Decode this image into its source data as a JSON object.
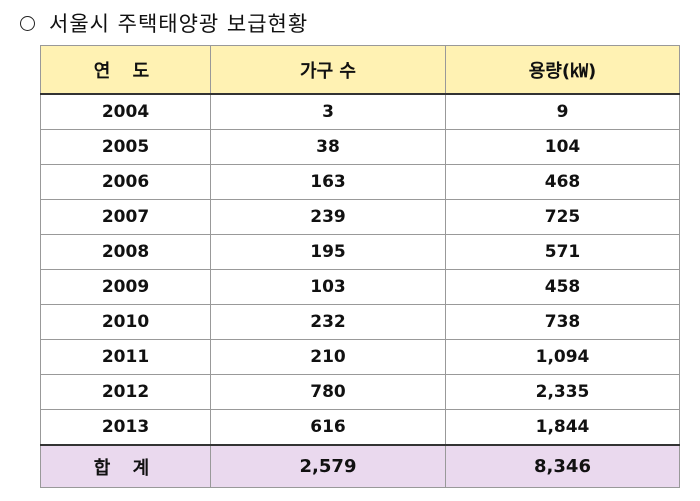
{
  "title": "서울시 주택태양광 보급현황",
  "table": {
    "headers": [
      "연 도",
      "가구 수",
      "용량(㎾)"
    ],
    "rows": [
      [
        "2004",
        "3",
        "9"
      ],
      [
        "2005",
        "38",
        "104"
      ],
      [
        "2006",
        "163",
        "468"
      ],
      [
        "2007",
        "239",
        "725"
      ],
      [
        "2008",
        "195",
        "571"
      ],
      [
        "2009",
        "103",
        "458"
      ],
      [
        "2010",
        "232",
        "738"
      ],
      [
        "2011",
        "210",
        "1,094"
      ],
      [
        "2012",
        "780",
        "2,335"
      ],
      [
        "2013",
        "616",
        "1,844"
      ]
    ],
    "total": [
      "합 계",
      "2,579",
      "8,346"
    ]
  },
  "colors": {
    "header_bg": "#fff2b3",
    "total_bg": "#ead9ee"
  },
  "icons": [
    "circle-bullet-icon"
  ]
}
